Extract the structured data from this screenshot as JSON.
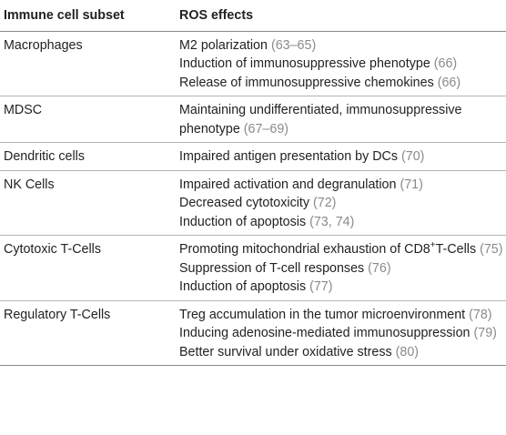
{
  "table": {
    "header": [
      "Immune cell subset",
      "ROS effects"
    ],
    "rows": [
      {
        "subset": "Macrophages",
        "effects": [
          {
            "text": "M2 polarization",
            "ref": "(63–65)"
          },
          {
            "text": "Induction of immunosuppressive phenotype",
            "ref": "(66)"
          },
          {
            "text": "Release of immunosuppressive chemokines",
            "ref": "(66)"
          }
        ]
      },
      {
        "subset": "MDSC",
        "effects": [
          {
            "text": "Maintaining undifferentiated, immunosuppressive phenotype",
            "ref": "(67–69)"
          }
        ]
      },
      {
        "subset": "Dendritic cells",
        "effects": [
          {
            "text": "Impaired antigen presentation by DCs",
            "ref": "(70)"
          }
        ]
      },
      {
        "subset": "NK Cells",
        "effects": [
          {
            "text": "Impaired activation and degranulation",
            "ref": "(71)"
          },
          {
            "text": "Decreased cytotoxicity",
            "ref": "(72)"
          },
          {
            "text": "Induction of apoptosis",
            "ref": "(73, 74)"
          }
        ]
      },
      {
        "subset": "Cytotoxic T-Cells",
        "effects": [
          {
            "text": "Promoting mitochondrial exhaustion of CD8",
            "sup": "+",
            "rest": "T-Cells",
            "ref": "(75)"
          },
          {
            "text": "Suppression of T-cell responses",
            "ref": "(76)"
          },
          {
            "text": "Induction of apoptosis",
            "ref": "(77)"
          }
        ]
      },
      {
        "subset": "Regulatory T-Cells",
        "effects": [
          {
            "text": "Treg accumulation in the tumor microenvironment",
            "ref": "(78)"
          },
          {
            "text": "Inducing adenosine-mediated immunosuppression",
            "ref": "(79)"
          },
          {
            "text": "Better survival under oxidative stress",
            "ref": "(80)"
          }
        ]
      }
    ]
  }
}
